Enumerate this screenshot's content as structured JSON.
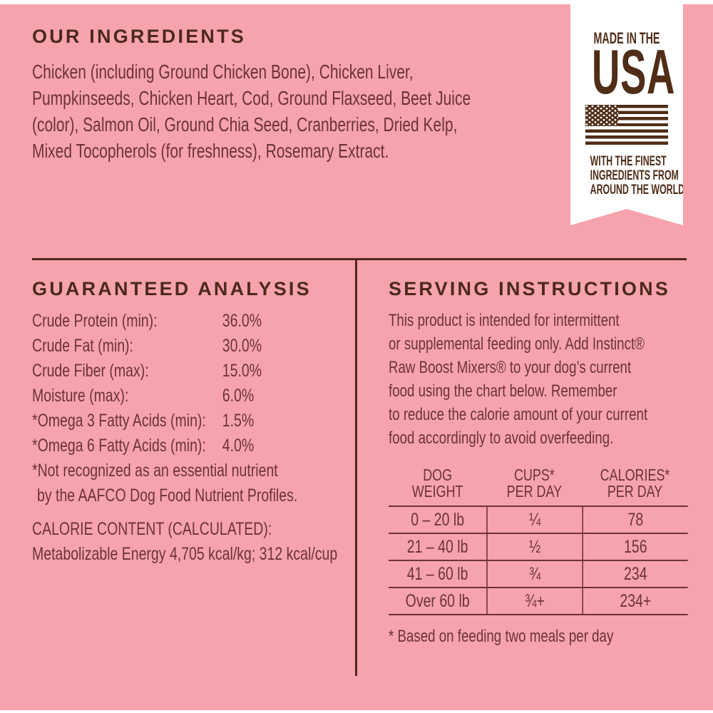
{
  "colors": {
    "background": "#F6A3AD",
    "heading_brown": "#4C291B",
    "body_maroon": "#6D3237",
    "ribbon_brown": "#4F2D17",
    "rule_brown": "#53281F",
    "ribbon_white": "#FFFFFF"
  },
  "ingredients": {
    "title": "OUR INGREDIENTS",
    "lines": [
      "Chicken (including Ground Chicken Bone), Chicken Liver,",
      "Pumpkinseeds, Chicken Heart, Cod, Ground Flaxseed, Beet Juice",
      "(color), Salmon Oil, Ground Chia Seed, Cranberries, Dried Kelp,",
      "Mixed Tocopherols (for freshness), Rosemary Extract."
    ]
  },
  "made_in_usa": {
    "top_label": "MADE IN THE",
    "big_label": "USA",
    "flag_icon": "us-flag-icon",
    "tagline_lines": [
      "WITH THE FINEST",
      "INGREDIENTS FROM",
      "AROUND THE WORLD"
    ]
  },
  "guaranteed_analysis": {
    "title": "GUARANTEED ANALYSIS",
    "rows": [
      {
        "label": "Crude Protein (min):",
        "value": "36.0%"
      },
      {
        "label": "Crude Fat (min):",
        "value": "30.0%"
      },
      {
        "label": "Crude Fiber (max):",
        "value": "15.0%"
      },
      {
        "label": "Moisture (max):",
        "value": "6.0%"
      },
      {
        "label": "*Omega 3 Fatty Acids (min):",
        "value": "1.5%"
      },
      {
        "label": "*Omega 6 Fatty Acids (min):",
        "value": "4.0%"
      }
    ],
    "footnote_lines": [
      "*Not recognized as an essential nutrient",
      "by the AAFCO Dog Food Nutrient Profiles."
    ],
    "calorie_title": "CALORIE CONTENT (CALCULATED):",
    "calorie_text": "Metabolizable Energy 4,705 kcal/kg; 312 kcal/cup"
  },
  "serving_instructions": {
    "title": "SERVING INSTRUCTIONS",
    "lines": [
      "This product is intended for intermittent",
      "or supplemental feeding only. Add Instinct®",
      "Raw Boost Mixers® to your dog’s current",
      "food using the chart below. Remember",
      "to reduce the calorie amount of your current",
      "food accordingly to avoid overfeeding."
    ],
    "table": {
      "headers": [
        [
          "DOG",
          "WEIGHT"
        ],
        [
          "CUPS*",
          "PER DAY"
        ],
        [
          "CALORIES*",
          "PER DAY"
        ]
      ],
      "rows": [
        [
          "0 – 20 lb",
          "¼",
          "78"
        ],
        [
          "21 – 40 lb",
          "½",
          "156"
        ],
        [
          "41 – 60 lb",
          "¾",
          "234"
        ],
        [
          "Over 60 lb",
          "¾+",
          "234+"
        ]
      ],
      "footnote": "* Based on feeding two meals per day"
    }
  }
}
